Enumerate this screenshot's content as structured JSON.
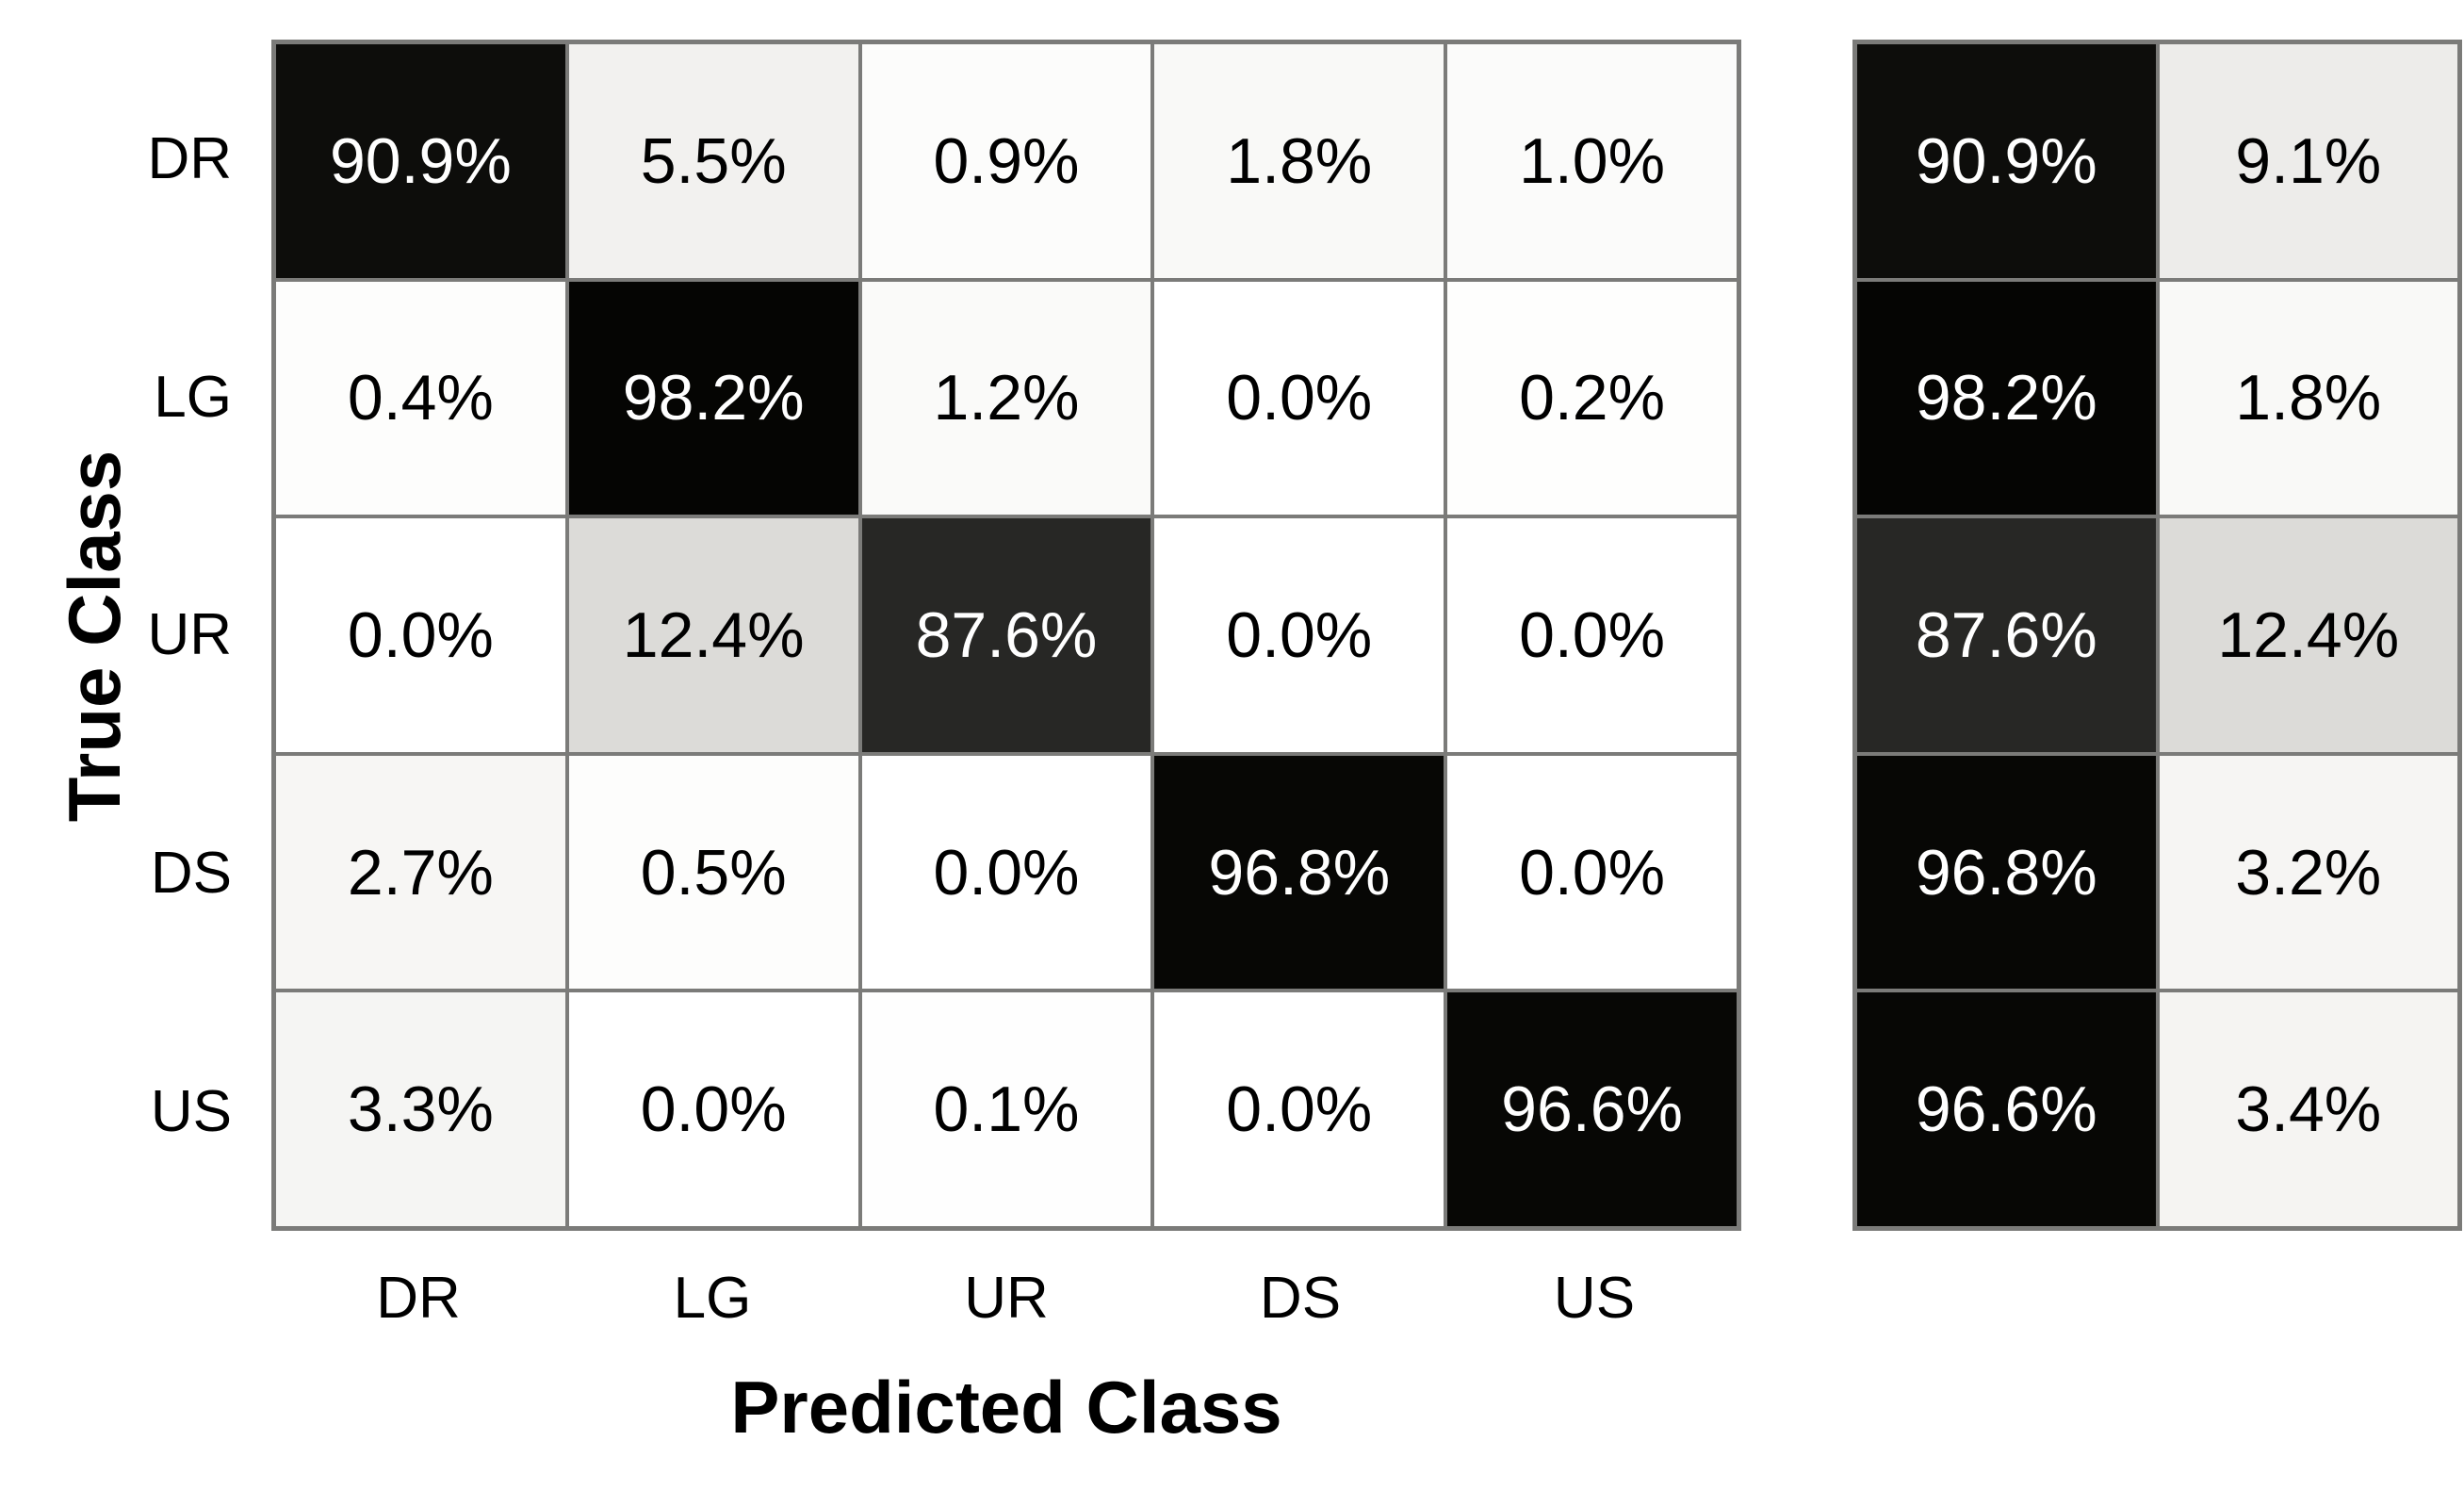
{
  "axes": {
    "x_label": "Predicted Class",
    "y_label": "True Class"
  },
  "classes": [
    "DR",
    "LG",
    "UR",
    "DS",
    "US"
  ],
  "chart_data": {
    "type": "heatmap",
    "subtype": "confusion-matrix-row-normalized",
    "xlabel": "Predicted Class",
    "ylabel": "True Class",
    "x_categories": [
      "DR",
      "LG",
      "UR",
      "DS",
      "US"
    ],
    "y_categories": [
      "DR",
      "LG",
      "UR",
      "DS",
      "US"
    ],
    "values_percent": [
      [
        90.9,
        5.5,
        0.9,
        1.8,
        1.0
      ],
      [
        0.4,
        98.2,
        1.2,
        0.0,
        0.2
      ],
      [
        0.0,
        12.4,
        87.6,
        0.0,
        0.0
      ],
      [
        2.7,
        0.5,
        0.0,
        96.8,
        0.0
      ],
      [
        3.3,
        0.0,
        0.1,
        0.0,
        96.6
      ]
    ],
    "row_summary_percent": {
      "correct": [
        90.9,
        98.2,
        87.6,
        96.8,
        96.6
      ],
      "incorrect": [
        9.1,
        1.8,
        12.4,
        3.2,
        3.4
      ]
    },
    "legend_position": "none",
    "grid": "gray cell borders",
    "colormap": "grayscale: 0% = white, 100% = black"
  },
  "matrix": {
    "cells": [
      [
        {
          "text": "90.9%",
          "bg": "#0d0d0b"
        },
        {
          "text": "5.5%",
          "bg": "#f2f1ef"
        },
        {
          "text": "0.9%",
          "bg": "#fcfcfb"
        },
        {
          "text": "1.8%",
          "bg": "#f9f9f7"
        },
        {
          "text": "1.0%",
          "bg": "#fbfbfa"
        }
      ],
      [
        {
          "text": "0.4%",
          "bg": "#fdfdfc"
        },
        {
          "text": "98.2%",
          "bg": "#050503"
        },
        {
          "text": "1.2%",
          "bg": "#fafaf9"
        },
        {
          "text": "0.0%",
          "bg": "#ffffff"
        },
        {
          "text": "0.2%",
          "bg": "#fefefd"
        }
      ],
      [
        {
          "text": "0.0%",
          "bg": "#ffffff"
        },
        {
          "text": "12.4%",
          "bg": "#dcdbd8"
        },
        {
          "text": "87.6%",
          "bg": "#272725"
        },
        {
          "text": "0.0%",
          "bg": "#ffffff"
        },
        {
          "text": "0.0%",
          "bg": "#ffffff"
        }
      ],
      [
        {
          "text": "2.7%",
          "bg": "#f7f6f4"
        },
        {
          "text": "0.5%",
          "bg": "#fdfdfc"
        },
        {
          "text": "0.0%",
          "bg": "#ffffff"
        },
        {
          "text": "96.8%",
          "bg": "#070705"
        },
        {
          "text": "0.0%",
          "bg": "#ffffff"
        }
      ],
      [
        {
          "text": "3.3%",
          "bg": "#f5f5f3"
        },
        {
          "text": "0.0%",
          "bg": "#ffffff"
        },
        {
          "text": "0.1%",
          "bg": "#fefefe"
        },
        {
          "text": "0.0%",
          "bg": "#ffffff"
        },
        {
          "text": "96.6%",
          "bg": "#070705"
        }
      ]
    ],
    "summary_cells": [
      [
        {
          "text": "90.9%",
          "bg": "#0d0d0b"
        },
        {
          "text": "9.1%",
          "bg": "#edecea"
        }
      ],
      [
        {
          "text": "98.2%",
          "bg": "#050503"
        },
        {
          "text": "1.8%",
          "bg": "#f9f9f7"
        }
      ],
      [
        {
          "text": "87.6%",
          "bg": "#272725"
        },
        {
          "text": "12.4%",
          "bg": "#dcdbd8"
        }
      ],
      [
        {
          "text": "96.8%",
          "bg": "#070705"
        },
        {
          "text": "3.2%",
          "bg": "#f6f5f3"
        }
      ],
      [
        {
          "text": "96.6%",
          "bg": "#070705"
        },
        {
          "text": "3.4%",
          "bg": "#f5f4f2"
        }
      ]
    ]
  },
  "colors": {
    "grid_line": "#7b7b79",
    "background": "#ffffff",
    "text_on_dark": "#ffffff",
    "text_on_light": "#000000"
  }
}
